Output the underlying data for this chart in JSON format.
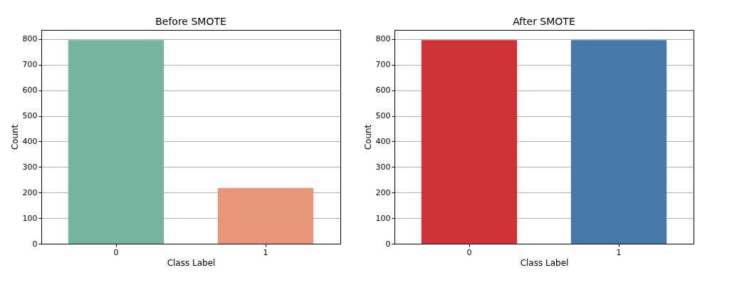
{
  "chart_data": [
    {
      "type": "bar",
      "title": "Before SMOTE",
      "xlabel": "Class Label",
      "ylabel": "Count",
      "categories": [
        "0",
        "1"
      ],
      "values": [
        796,
        218
      ],
      "colors": [
        "#76b4a0",
        "#e8967a"
      ],
      "ylim": [
        0,
        836
      ],
      "yticks": [
        0,
        100,
        200,
        300,
        400,
        500,
        600,
        700,
        800
      ],
      "grid": "y"
    },
    {
      "type": "bar",
      "title": "After SMOTE",
      "xlabel": "Class Label",
      "ylabel": "Count",
      "categories": [
        "0",
        "1"
      ],
      "values": [
        796,
        796
      ],
      "colors": [
        "#cd3337",
        "#4679a8"
      ],
      "ylim": [
        0,
        836
      ],
      "yticks": [
        0,
        100,
        200,
        300,
        400,
        500,
        600,
        700,
        800
      ],
      "grid": "y"
    }
  ]
}
